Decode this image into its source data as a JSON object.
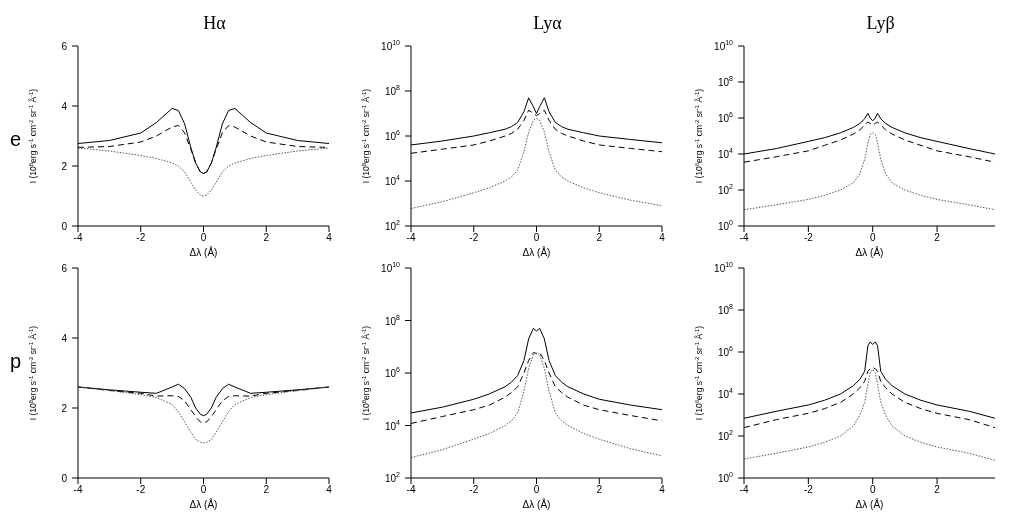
{
  "chart_data": [
    {
      "type": "line",
      "title": "Hα",
      "annotations": [
        "e"
      ],
      "xlabel": "Δλ (Å)",
      "ylabel": "I (10$^{8}$erg s$^{-1}$ cm$^{-2}$ sr$^{-1}$ Å$^{-1}$)",
      "xlim": [
        -4,
        4
      ],
      "xticks": [
        -4,
        -2,
        0,
        2,
        4
      ],
      "ylim": [
        0,
        6
      ],
      "yticks": [
        0,
        2,
        4,
        6
      ],
      "x": [
        -4,
        -3,
        -2,
        -1.5,
        -1,
        -0.8,
        -0.6,
        -0.4,
        -0.25,
        -0.1,
        0,
        0.1,
        0.25,
        0.4,
        0.6,
        0.8,
        1,
        1.5,
        2,
        3,
        4
      ],
      "series": [
        {
          "color": "#000000",
          "line_style": "solid",
          "values": [
            2.75,
            2.85,
            3.1,
            3.45,
            3.92,
            3.85,
            3.4,
            2.6,
            2.1,
            1.8,
            1.75,
            1.8,
            2.1,
            2.6,
            3.4,
            3.85,
            3.92,
            3.45,
            3.1,
            2.85,
            2.75
          ]
        },
        {
          "color": "#000000",
          "line_style": "dashed",
          "values": [
            2.62,
            2.65,
            2.8,
            3.0,
            3.3,
            3.35,
            3.1,
            2.55,
            2.1,
            1.8,
            1.75,
            1.8,
            2.1,
            2.55,
            3.1,
            3.35,
            3.3,
            3.0,
            2.8,
            2.65,
            2.62
          ]
        },
        {
          "color": "#555555",
          "line_style": "dotted",
          "values": [
            2.6,
            2.5,
            2.35,
            2.25,
            2.1,
            2.0,
            1.8,
            1.45,
            1.2,
            1.03,
            1.0,
            1.03,
            1.2,
            1.45,
            1.8,
            2.0,
            2.1,
            2.25,
            2.35,
            2.5,
            2.6
          ]
        }
      ]
    },
    {
      "type": "line",
      "title": "Lyα",
      "xlabel": "Δλ (Å)",
      "ylabel": "I (10$^{8}$erg s$^{-1}$ cm$^{-2}$ sr$^{-1}$ Å$^{-1}$)",
      "log": true,
      "xlim": [
        -4,
        4
      ],
      "xticks": [
        -4,
        -2,
        0,
        2,
        4
      ],
      "ylim": [
        100,
        10000000000
      ],
      "yticks": [
        {
          "value": 100,
          "label": "10$^{2}$"
        },
        {
          "value": 10000,
          "label": "10$^{4}$"
        },
        {
          "value": 1000000,
          "label": "10$^{6}$"
        },
        {
          "value": 100000000,
          "label": "10$^{8}$"
        },
        {
          "value": 10000000000,
          "label": "10$^{10}$"
        }
      ],
      "x": [
        -4,
        -3,
        -2,
        -1.5,
        -1,
        -0.8,
        -0.6,
        -0.4,
        -0.25,
        -0.1,
        0,
        0.1,
        0.25,
        0.4,
        0.6,
        0.8,
        1,
        1.5,
        2,
        3,
        4
      ],
      "series": [
        {
          "color": "#000000",
          "line_style": "solid",
          "values": [
            400000,
            600000,
            1000000,
            1400000,
            2000000,
            2600000,
            4000000,
            12000000,
            50000000,
            20000000,
            10000000,
            20000000,
            50000000,
            12000000,
            4000000,
            2600000,
            2000000,
            1400000,
            1000000,
            700000,
            500000
          ]
        },
        {
          "color": "#000000",
          "line_style": "dashed",
          "values": [
            170000,
            260000,
            400000,
            600000,
            1000000,
            1300000,
            2000000,
            5000000,
            14000000,
            10000000,
            8000000,
            10000000,
            14000000,
            5000000,
            2000000,
            1300000,
            1000000,
            600000,
            400000,
            280000,
            200000
          ]
        },
        {
          "color": "#555555",
          "line_style": "dotted",
          "values": [
            600,
            1200,
            3000,
            5000,
            10000,
            15000,
            30000,
            200000,
            1500000,
            5000000,
            6000000,
            5000000,
            1500000,
            200000,
            30000,
            15000,
            10000,
            5000,
            3000,
            1400,
            800
          ]
        }
      ]
    },
    {
      "type": "line",
      "title": "Lyβ",
      "xlabel": "Δλ (Å)",
      "ylabel": "I (10$^{6}$erg s$^{-1}$ cm$^{-2}$ sr$^{-1}$ Å$^{-1}$)",
      "log": true,
      "xlim": [
        -4,
        3.8
      ],
      "xticks": [
        -4,
        -2,
        0,
        2
      ],
      "ylim": [
        1,
        10000000000
      ],
      "yticks": [
        {
          "value": 1,
          "label": "10$^{0}$"
        },
        {
          "value": 100,
          "label": "10$^{2}$"
        },
        {
          "value": 10000,
          "label": "10$^{4}$"
        },
        {
          "value": 1000000,
          "label": "10$^{6}$"
        },
        {
          "value": 100000000,
          "label": "10$^{8}$"
        },
        {
          "value": 10000000000,
          "label": "10$^{10}$"
        }
      ],
      "x": [
        -4,
        -3,
        -2,
        -1.5,
        -1,
        -0.6,
        -0.4,
        -0.25,
        -0.15,
        -0.08,
        0,
        0.08,
        0.15,
        0.25,
        0.4,
        0.6,
        1,
        1.5,
        2,
        3,
        3.8
      ],
      "series": [
        {
          "color": "#000000",
          "line_style": "solid",
          "values": [
            10000,
            20000,
            50000,
            80000,
            150000,
            300000,
            500000,
            900000,
            1800000,
            1000000,
            700000,
            1000000,
            1800000,
            900000,
            500000,
            300000,
            150000,
            80000,
            50000,
            20000,
            10000
          ]
        },
        {
          "color": "#000000",
          "line_style": "dashed",
          "values": [
            3500,
            7000,
            15000,
            30000,
            60000,
            130000,
            220000,
            400000,
            600000,
            500000,
            400000,
            500000,
            600000,
            400000,
            220000,
            130000,
            60000,
            30000,
            15000,
            7000,
            3500
          ]
        },
        {
          "color": "#555555",
          "line_style": "dotted",
          "values": [
            8,
            15,
            30,
            50,
            100,
            250,
            800,
            5000,
            40000,
            120000,
            150000,
            120000,
            40000,
            5000,
            800,
            250,
            100,
            50,
            30,
            15,
            8
          ]
        }
      ]
    },
    {
      "type": "line",
      "annotations": [
        "p"
      ],
      "xlabel": "Δλ (Å)",
      "ylabel": "I (10$^{8}$erg s$^{-1}$ cm$^{-2}$ sr$^{-1}$ Å$^{-1}$)",
      "xlim": [
        -4,
        4
      ],
      "xticks": [
        -4,
        -2,
        0,
        2,
        4
      ],
      "ylim": [
        0,
        6
      ],
      "yticks": [
        0,
        2,
        4,
        6
      ],
      "x": [
        -4,
        -3,
        -2,
        -1.5,
        -1,
        -0.8,
        -0.6,
        -0.4,
        -0.25,
        -0.1,
        0,
        0.1,
        0.25,
        0.4,
        0.6,
        0.8,
        1,
        1.5,
        2,
        3,
        4
      ],
      "series": [
        {
          "color": "#000000",
          "line_style": "solid",
          "values": [
            2.6,
            2.52,
            2.45,
            2.42,
            2.6,
            2.68,
            2.55,
            2.3,
            2.0,
            1.82,
            1.78,
            1.82,
            2.0,
            2.3,
            2.55,
            2.68,
            2.6,
            2.42,
            2.45,
            2.52,
            2.6
          ]
        },
        {
          "color": "#000000",
          "line_style": "dashed",
          "values": [
            2.6,
            2.5,
            2.42,
            2.34,
            2.35,
            2.33,
            2.2,
            1.95,
            1.75,
            1.6,
            1.58,
            1.6,
            1.75,
            1.95,
            2.2,
            2.33,
            2.35,
            2.34,
            2.42,
            2.5,
            2.6
          ]
        },
        {
          "color": "#555555",
          "line_style": "dotted",
          "values": [
            2.6,
            2.5,
            2.38,
            2.3,
            2.1,
            1.9,
            1.6,
            1.3,
            1.1,
            1.02,
            1.0,
            1.02,
            1.1,
            1.3,
            1.6,
            1.9,
            2.1,
            2.3,
            2.38,
            2.5,
            2.6
          ]
        }
      ]
    },
    {
      "type": "line",
      "xlabel": "Δλ (Å)",
      "ylabel": "I (10$^{8}$erg s$^{-1}$ cm$^{-2}$ sr$^{-1}$ Å$^{-1}$)",
      "log": true,
      "xlim": [
        -4,
        4
      ],
      "xticks": [
        -4,
        -2,
        0,
        2,
        4
      ],
      "ylim": [
        100,
        10000000000
      ],
      "yticks": [
        {
          "value": 100,
          "label": "10$^{2}$"
        },
        {
          "value": 10000,
          "label": "10$^{4}$"
        },
        {
          "value": 1000000,
          "label": "10$^{6}$"
        },
        {
          "value": 100000000,
          "label": "10$^{8}$"
        },
        {
          "value": 10000000000,
          "label": "10$^{10}$"
        }
      ],
      "x": [
        -4,
        -3,
        -2,
        -1.5,
        -1,
        -0.8,
        -0.6,
        -0.4,
        -0.25,
        -0.1,
        0,
        0.1,
        0.25,
        0.4,
        0.6,
        0.8,
        1,
        1.5,
        2,
        3,
        4
      ],
      "series": [
        {
          "color": "#000000",
          "line_style": "solid",
          "values": [
            30000,
            50000,
            100000,
            160000,
            300000,
            450000,
            800000,
            3000000,
            20000000,
            50000000,
            40000000,
            50000000,
            20000000,
            3000000,
            800000,
            450000,
            300000,
            160000,
            100000,
            60000,
            40000
          ]
        },
        {
          "color": "#000000",
          "line_style": "dashed",
          "values": [
            12000,
            22000,
            40000,
            60000,
            120000,
            180000,
            300000,
            1000000,
            3000000,
            6000000,
            5500000,
            6000000,
            3000000,
            1000000,
            300000,
            180000,
            120000,
            60000,
            40000,
            24000,
            15000
          ]
        },
        {
          "color": "#555555",
          "line_style": "dotted",
          "values": [
            600,
            1200,
            3000,
            5000,
            10000,
            15000,
            30000,
            200000,
            1500000,
            5000000,
            6000000,
            5000000,
            1500000,
            200000,
            30000,
            15000,
            10000,
            5000,
            3000,
            1300,
            700
          ]
        }
      ]
    },
    {
      "type": "line",
      "xlabel": "Δλ (Å)",
      "ylabel": "I (10$^{6}$erg s$^{-1}$ cm$^{-2}$ sr$^{-1}$ Å$^{-1}$)",
      "log": true,
      "xlim": [
        -4,
        3.8
      ],
      "xticks": [
        -4,
        -2,
        0,
        2
      ],
      "ylim": [
        1,
        10000000000
      ],
      "yticks": [
        {
          "value": 1,
          "label": "10$^{0}$"
        },
        {
          "value": 100,
          "label": "10$^{2}$"
        },
        {
          "value": 10000,
          "label": "10$^{4}$"
        },
        {
          "value": 1000000,
          "label": "10$^{6}$"
        },
        {
          "value": 100000000,
          "label": "10$^{8}$"
        },
        {
          "value": 10000000000,
          "label": "10$^{10}$"
        }
      ],
      "x": [
        -4,
        -3,
        -2,
        -1.5,
        -1,
        -0.6,
        -0.4,
        -0.25,
        -0.15,
        -0.08,
        0,
        0.08,
        0.15,
        0.25,
        0.4,
        0.6,
        1,
        1.5,
        2,
        3,
        3.8
      ],
      "series": [
        {
          "color": "#000000",
          "line_style": "solid",
          "values": [
            700,
            1500,
            3000,
            5000,
            10000,
            25000,
            50000,
            120000,
            2000000,
            3000000,
            2300000,
            3000000,
            2000000,
            120000,
            50000,
            25000,
            10000,
            5000,
            3000,
            1500,
            700
          ]
        },
        {
          "color": "#000000",
          "line_style": "dashed",
          "values": [
            250,
            600,
            1200,
            2000,
            4000,
            10000,
            20000,
            40000,
            120000,
            160000,
            180000,
            160000,
            120000,
            40000,
            20000,
            10000,
            4000,
            2000,
            1200,
            600,
            250
          ]
        },
        {
          "color": "#555555",
          "line_style": "dotted",
          "values": [
            8,
            15,
            30,
            50,
            100,
            300,
            1000,
            4000,
            30000,
            100000,
            150000,
            100000,
            30000,
            4000,
            1000,
            300,
            100,
            50,
            30,
            15,
            7
          ]
        }
      ]
    }
  ]
}
